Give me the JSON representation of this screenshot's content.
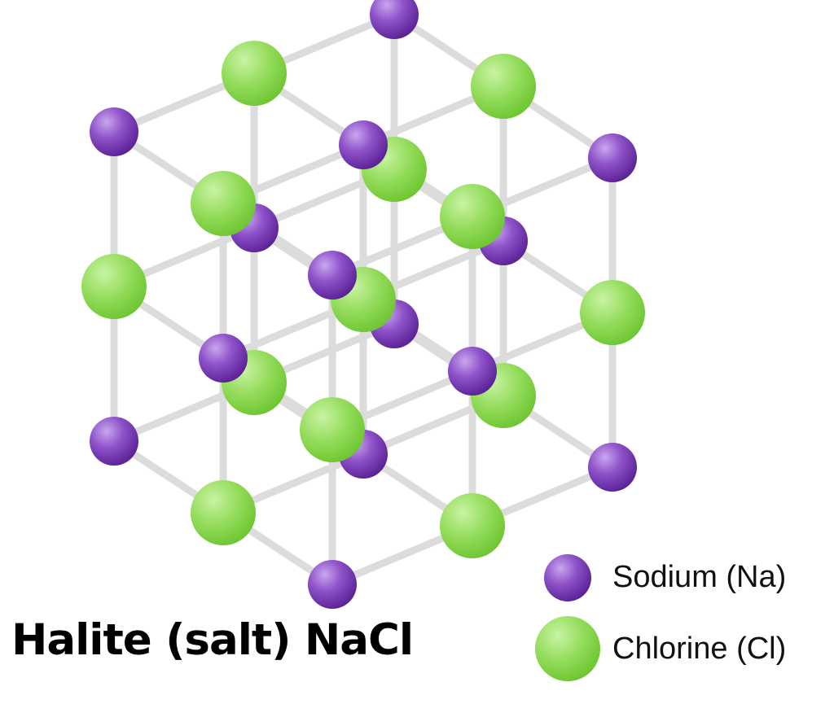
{
  "title": "Halite (salt) NaCl",
  "legend": [
    {
      "label": "Sodium (Na)",
      "color": "#7b3fb5"
    },
    {
      "label": "Chlorine (Cl)",
      "color": "#7ed23a"
    }
  ]
}
